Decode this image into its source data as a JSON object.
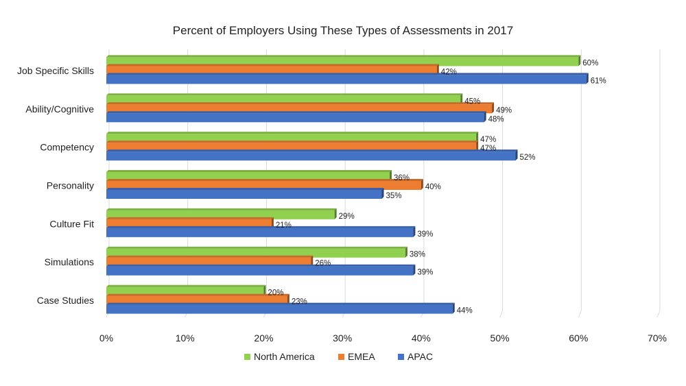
{
  "chart_data": {
    "type": "bar",
    "orientation": "horizontal",
    "title": "Percent of Employers Using These Types of Assessments in 2017",
    "categories": [
      "Job Specific Skills",
      "Ability/Cognitive",
      "Competency",
      "Personality",
      "Culture Fit",
      "Simulations",
      "Case Studies"
    ],
    "series": [
      {
        "name": "North America",
        "color": "#92d050",
        "values": [
          60,
          45,
          47,
          36,
          29,
          38,
          20
        ]
      },
      {
        "name": "EMEA",
        "color": "#ed7d31",
        "values": [
          42,
          49,
          47,
          40,
          21,
          26,
          23
        ]
      },
      {
        "name": "APAC",
        "color": "#4472c4",
        "values": [
          61,
          48,
          52,
          35,
          39,
          39,
          44
        ]
      }
    ],
    "value_suffix": "%",
    "xlim": [
      0,
      70
    ],
    "xticks": [
      0,
      10,
      20,
      30,
      40,
      50,
      60,
      70
    ],
    "tick_labels": [
      "0%",
      "10%",
      "20%",
      "30%",
      "40%",
      "50%",
      "60%",
      "70%"
    ],
    "grid": true,
    "legend_position": "bottom",
    "style": "3d-bars"
  }
}
